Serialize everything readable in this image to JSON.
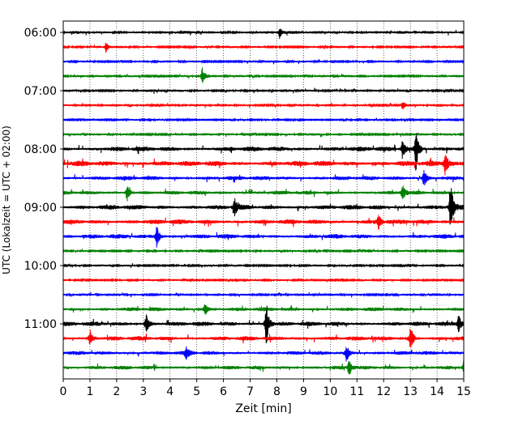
{
  "chart_data": {
    "type": "line",
    "xlabel": "Zeit  [min]",
    "ylabel": "UTC (Lokalzeit = UTC + 02:00)",
    "xlim": [
      0,
      15
    ],
    "x_ticks": [
      0,
      1,
      2,
      3,
      4,
      5,
      6,
      7,
      8,
      9,
      10,
      11,
      12,
      13,
      14,
      15
    ],
    "x_tick_labels": [
      "0",
      "1",
      "2",
      "3",
      "4",
      "5",
      "6",
      "7",
      "8",
      "9",
      "10",
      "11",
      "12",
      "13",
      "14",
      "15"
    ],
    "y_ticks": [
      "06:00",
      "07:00",
      "08:00",
      "09:00",
      "10:00",
      "11:00"
    ],
    "grid_x": true,
    "colors": [
      "#000000",
      "#ff0000",
      "#0000ff",
      "#008000"
    ],
    "traces": [
      {
        "start": "06:00",
        "color": "#000000",
        "amplitude": 1.0,
        "events": [
          [
            8.1,
            1.5
          ]
        ]
      },
      {
        "start": "06:15",
        "color": "#ff0000",
        "amplitude": 0.8,
        "events": [
          [
            1.6,
            1.6
          ]
        ]
      },
      {
        "start": "06:30",
        "color": "#0000ff",
        "amplitude": 0.8,
        "events": []
      },
      {
        "start": "06:45",
        "color": "#008000",
        "amplitude": 0.8,
        "events": [
          [
            5.2,
            3.0
          ]
        ]
      },
      {
        "start": "07:00",
        "color": "#000000",
        "amplitude": 0.9,
        "events": []
      },
      {
        "start": "07:15",
        "color": "#ff0000",
        "amplitude": 0.9,
        "events": [
          [
            12.7,
            1.4
          ]
        ]
      },
      {
        "start": "07:30",
        "color": "#0000ff",
        "amplitude": 0.6,
        "events": []
      },
      {
        "start": "07:45",
        "color": "#008000",
        "amplitude": 0.8,
        "events": []
      },
      {
        "start": "08:00",
        "color": "#000000",
        "amplitude": 1.6,
        "events": [
          [
            13.2,
            4.0
          ],
          [
            12.7,
            1.6
          ]
        ]
      },
      {
        "start": "08:15",
        "color": "#ff0000",
        "amplitude": 1.8,
        "events": [
          [
            14.3,
            2.2
          ]
        ]
      },
      {
        "start": "08:30",
        "color": "#0000ff",
        "amplitude": 1.4,
        "events": [
          [
            13.5,
            2.0
          ]
        ]
      },
      {
        "start": "08:45",
        "color": "#008000",
        "amplitude": 1.3,
        "events": [
          [
            2.4,
            1.8
          ],
          [
            12.7,
            1.8
          ]
        ]
      },
      {
        "start": "09:00",
        "color": "#000000",
        "amplitude": 1.6,
        "events": [
          [
            14.5,
            5.0
          ],
          [
            6.4,
            1.8
          ]
        ]
      },
      {
        "start": "09:15",
        "color": "#ff0000",
        "amplitude": 1.6,
        "events": [
          [
            11.8,
            1.5
          ]
        ]
      },
      {
        "start": "09:30",
        "color": "#0000ff",
        "amplitude": 1.5,
        "events": [
          [
            3.5,
            2.0
          ]
        ]
      },
      {
        "start": "09:45",
        "color": "#008000",
        "amplitude": 0.7,
        "events": []
      },
      {
        "start": "10:00",
        "color": "#000000",
        "amplitude": 0.7,
        "events": []
      },
      {
        "start": "10:15",
        "color": "#ff0000",
        "amplitude": 0.7,
        "events": []
      },
      {
        "start": "10:30",
        "color": "#0000ff",
        "amplitude": 0.9,
        "events": []
      },
      {
        "start": "10:45",
        "color": "#008000",
        "amplitude": 1.3,
        "events": [
          [
            5.3,
            1.6
          ]
        ]
      },
      {
        "start": "11:00",
        "color": "#000000",
        "amplitude": 1.5,
        "events": [
          [
            7.6,
            4.5
          ],
          [
            3.1,
            1.8
          ],
          [
            14.8,
            1.8
          ]
        ]
      },
      {
        "start": "11:15",
        "color": "#ff0000",
        "amplitude": 1.5,
        "events": [
          [
            13.0,
            2.5
          ],
          [
            1.0,
            1.6
          ]
        ]
      },
      {
        "start": "11:30",
        "color": "#0000ff",
        "amplitude": 1.3,
        "events": [
          [
            10.6,
            2.0
          ],
          [
            4.6,
            1.5
          ]
        ]
      },
      {
        "start": "11:45",
        "color": "#008000",
        "amplitude": 1.3,
        "events": [
          [
            10.7,
            2.0
          ],
          [
            15.0,
            2.0
          ]
        ]
      }
    ]
  }
}
